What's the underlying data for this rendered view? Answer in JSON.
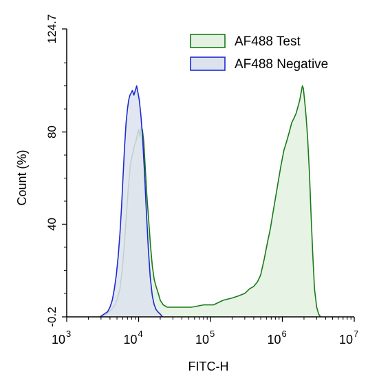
{
  "chart_data": {
    "type": "area",
    "xlabel": "FITC-H",
    "ylabel": "Count  (%)",
    "x_scale": "log",
    "xlim": [
      1000,
      10000000
    ],
    "ylim": [
      -0.2,
      124.7
    ],
    "x_ticks": [
      {
        "value": 1000,
        "base": "10",
        "exp": "3"
      },
      {
        "value": 10000,
        "base": "10",
        "exp": "4"
      },
      {
        "value": 100000,
        "base": "10",
        "exp": "5"
      },
      {
        "value": 1000000,
        "base": "10",
        "exp": "6"
      },
      {
        "value": 10000000,
        "base": "10",
        "exp": "7"
      }
    ],
    "y_ticks": [
      {
        "value": -0.2,
        "label": "-0.2"
      },
      {
        "value": 40,
        "label": "40"
      },
      {
        "value": 80,
        "label": "80"
      },
      {
        "value": 124.7,
        "label": "124.7"
      }
    ],
    "grid": false,
    "legend_position": "top-right",
    "series": [
      {
        "name": "AF488 Test",
        "stroke": "#1a7a1a",
        "fill": "#e3f1e1",
        "points": [
          [
            3000,
            -0.2
          ],
          [
            3600,
            1
          ],
          [
            4200,
            3
          ],
          [
            4700,
            5
          ],
          [
            5100,
            8
          ],
          [
            5500,
            12
          ],
          [
            5900,
            20
          ],
          [
            6300,
            30
          ],
          [
            6700,
            42
          ],
          [
            7200,
            56
          ],
          [
            7700,
            66
          ],
          [
            8200,
            70
          ],
          [
            8700,
            74
          ],
          [
            9200,
            76
          ],
          [
            9600,
            79
          ],
          [
            10000,
            81
          ],
          [
            10400,
            78
          ],
          [
            10800,
            82
          ],
          [
            11300,
            81
          ],
          [
            11800,
            76
          ],
          [
            12300,
            66
          ],
          [
            13000,
            53
          ],
          [
            13800,
            42
          ],
          [
            14600,
            31
          ],
          [
            15500,
            22
          ],
          [
            16500,
            16
          ],
          [
            17500,
            13
          ],
          [
            18800,
            10
          ],
          [
            20000,
            7
          ],
          [
            22000,
            5
          ],
          [
            25000,
            4
          ],
          [
            30000,
            4
          ],
          [
            40000,
            4
          ],
          [
            55000,
            4
          ],
          [
            80000,
            5
          ],
          [
            110000,
            5
          ],
          [
            150000,
            7
          ],
          [
            200000,
            8
          ],
          [
            250000,
            9
          ],
          [
            300000,
            10
          ],
          [
            350000,
            12
          ],
          [
            400000,
            13
          ],
          [
            450000,
            15
          ],
          [
            500000,
            18
          ],
          [
            560000,
            25
          ],
          [
            620000,
            32
          ],
          [
            680000,
            38
          ],
          [
            760000,
            47
          ],
          [
            850000,
            56
          ],
          [
            950000,
            65
          ],
          [
            1050000,
            72
          ],
          [
            1150000,
            76
          ],
          [
            1250000,
            80
          ],
          [
            1350000,
            84
          ],
          [
            1450000,
            86
          ],
          [
            1550000,
            88
          ],
          [
            1650000,
            91
          ],
          [
            1750000,
            94
          ],
          [
            1820000,
            97
          ],
          [
            1900000,
            100
          ],
          [
            1960000,
            99
          ],
          [
            2020000,
            95
          ],
          [
            2080000,
            91
          ],
          [
            2150000,
            86
          ],
          [
            2250000,
            77
          ],
          [
            2380000,
            62
          ],
          [
            2500000,
            45
          ],
          [
            2650000,
            27
          ],
          [
            2800000,
            12
          ],
          [
            3000000,
            4
          ],
          [
            3200000,
            1
          ],
          [
            3400000,
            -0.2
          ]
        ]
      },
      {
        "name": "AF488 Negative",
        "stroke": "#1a2bd1",
        "fill": "#dde2ef",
        "points": [
          [
            2900,
            -0.2
          ],
          [
            3300,
            1
          ],
          [
            3700,
            2
          ],
          [
            4000,
            4
          ],
          [
            4300,
            7
          ],
          [
            4600,
            12
          ],
          [
            4900,
            18
          ],
          [
            5200,
            26
          ],
          [
            5500,
            36
          ],
          [
            5800,
            48
          ],
          [
            6100,
            62
          ],
          [
            6400,
            74
          ],
          [
            6700,
            84
          ],
          [
            7000,
            90
          ],
          [
            7300,
            94
          ],
          [
            7600,
            96
          ],
          [
            7900,
            97
          ],
          [
            8200,
            98
          ],
          [
            8600,
            96
          ],
          [
            9000,
            98
          ],
          [
            9400,
            100
          ],
          [
            9800,
            97
          ],
          [
            10200,
            94
          ],
          [
            10700,
            88
          ],
          [
            11300,
            79
          ],
          [
            12000,
            64
          ],
          [
            12800,
            46
          ],
          [
            13600,
            30
          ],
          [
            14500,
            17
          ],
          [
            15500,
            9
          ],
          [
            16500,
            5
          ],
          [
            17500,
            3
          ],
          [
            18500,
            2
          ],
          [
            20000,
            1
          ],
          [
            21500,
            -0.2
          ]
        ]
      }
    ]
  }
}
